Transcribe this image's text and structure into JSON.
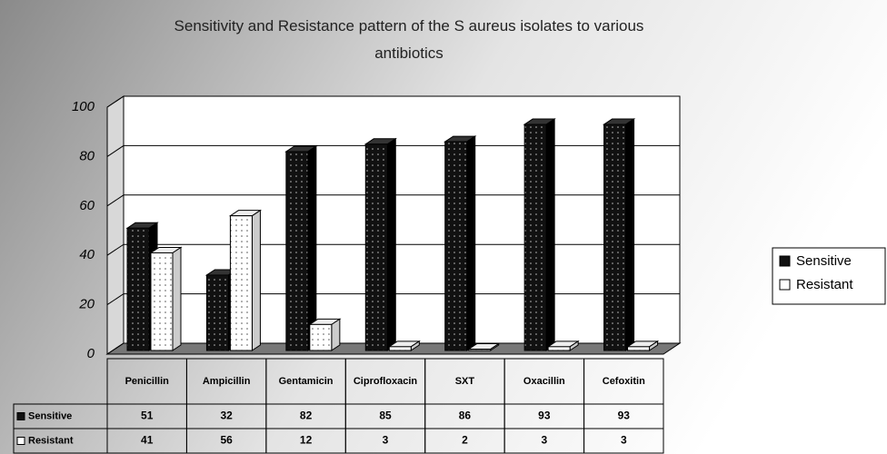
{
  "chart_data": {
    "type": "bar3d",
    "title": "Sensitivity and Resistance pattern of the S aureus isolates to various antibiotics",
    "categories": [
      "Penicillin",
      "Ampicillin",
      "Gentamicin",
      "Ciprofloxacin",
      "SXT",
      "Oxacillin",
      "Cefoxitin"
    ],
    "series": [
      {
        "name": "Sensitive",
        "color": "#111111",
        "values": [
          51,
          32,
          82,
          85,
          86,
          93,
          93
        ]
      },
      {
        "name": "Resistant",
        "color": "#ffffff",
        "values": [
          41,
          56,
          12,
          3,
          2,
          3,
          3
        ]
      }
    ],
    "ylim": [
      0,
      100
    ],
    "yticks": [
      0,
      20,
      40,
      60,
      80,
      100
    ],
    "grid": true,
    "legend": "right"
  }
}
